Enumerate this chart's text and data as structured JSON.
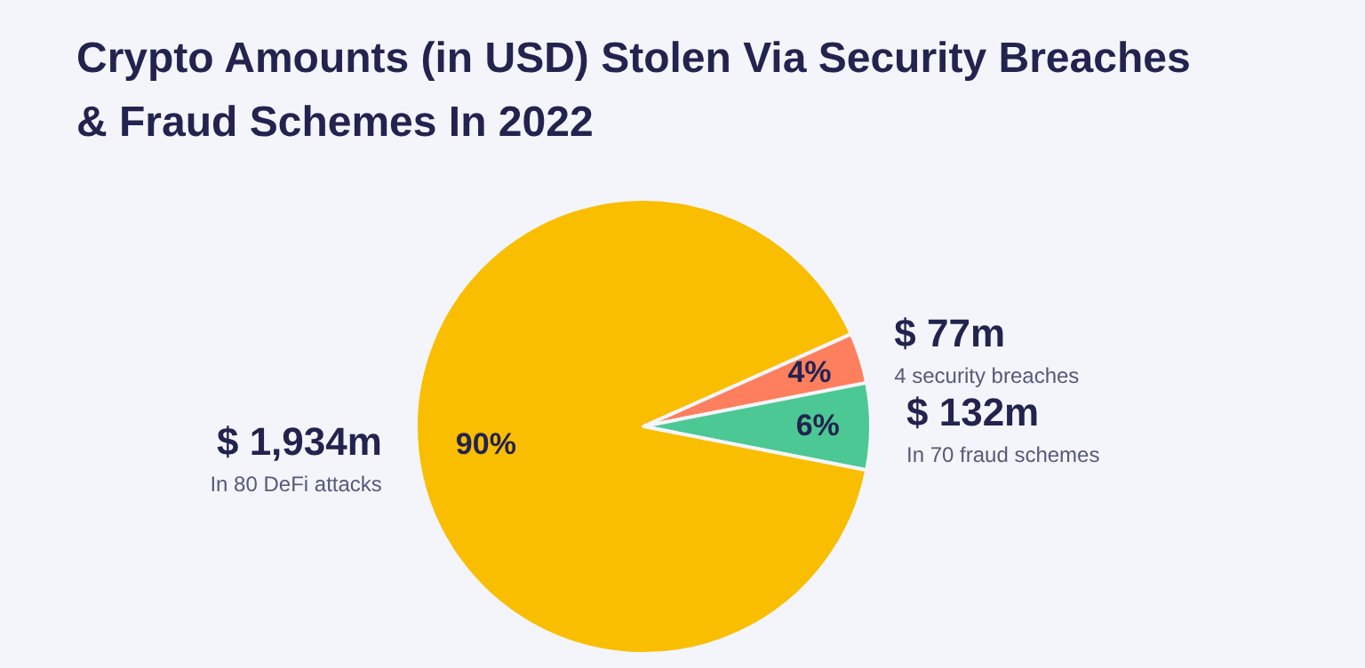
{
  "chart_data": {
    "type": "pie",
    "title": "Crypto Amounts (in USD) Stolen Via Security Breaches\n& Fraud Schemes In 2022",
    "categories": [
      "4 security breaches",
      "In 70 fraud schemes",
      "In 80 DeFi attacks"
    ],
    "values": [
      77,
      132,
      1934
    ],
    "colors": [
      "#fd7f5e",
      "#4cc894",
      "#f9be00"
    ],
    "value_labels": [
      "$ 77m",
      "$ 132m",
      "$ 1,934m"
    ],
    "annotations": [
      "4%",
      "6%",
      "90%"
    ],
    "legend": false
  }
}
